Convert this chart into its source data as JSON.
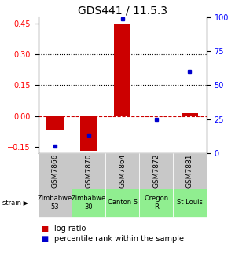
{
  "title": "GDS441 / 11.5.3",
  "samples": [
    "GSM7866",
    "GSM7870",
    "GSM7864",
    "GSM7872",
    "GSM7881"
  ],
  "strains": [
    "Zimbabwe\n53",
    "Zimbabwe\n30",
    "Canton S",
    "Oregon\nR",
    "St Louis"
  ],
  "strain_colors": [
    "#c8c8c8",
    "#90ee90",
    "#90ee90",
    "#90ee90",
    "#90ee90"
  ],
  "sample_bg_color": "#c8c8c8",
  "log_ratios": [
    -0.07,
    -0.17,
    0.45,
    0.0,
    0.015
  ],
  "percentile_ranks": [
    5,
    13,
    99,
    25,
    60
  ],
  "ylim_left": [
    -0.18,
    0.48
  ],
  "ylim_right": [
    0,
    100
  ],
  "yticks_left": [
    -0.15,
    0,
    0.15,
    0.3,
    0.45
  ],
  "yticks_right": [
    0,
    25,
    50,
    75,
    100
  ],
  "hlines": [
    0.15,
    0.3
  ],
  "bar_color": "#cc0000",
  "dot_color": "#0000cc",
  "zero_line_color": "#cc0000",
  "background_color": "#ffffff",
  "title_fontsize": 10,
  "tick_fontsize": 7,
  "legend_fontsize": 7,
  "strain_fontsize": 6,
  "sample_fontsize": 6.5
}
